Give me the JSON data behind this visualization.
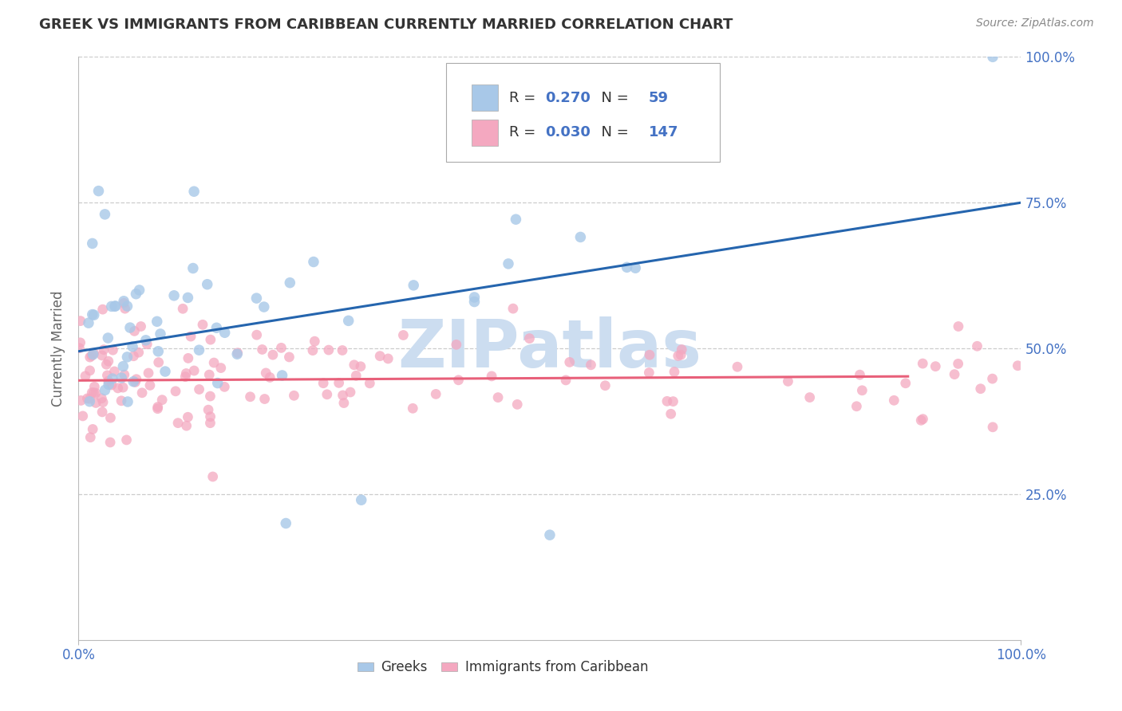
{
  "title": "GREEK VS IMMIGRANTS FROM CARIBBEAN CURRENTLY MARRIED CORRELATION CHART",
  "source": "Source: ZipAtlas.com",
  "ylabel": "Currently Married",
  "xlim": [
    0,
    1
  ],
  "ylim": [
    0,
    1
  ],
  "ytick_positions": [
    0.25,
    0.5,
    0.75,
    1.0
  ],
  "yticklabels": [
    "25.0%",
    "50.0%",
    "75.0%",
    "100.0%"
  ],
  "blue_R": 0.27,
  "blue_N": 59,
  "pink_R": 0.03,
  "pink_N": 147,
  "blue_trend_x": [
    0.0,
    1.0
  ],
  "blue_trend_y": [
    0.495,
    0.75
  ],
  "pink_trend_x": [
    0.0,
    0.88
  ],
  "pink_trend_y": [
    0.445,
    0.452
  ],
  "blue_color": "#a8c8e8",
  "pink_color": "#f4a8c0",
  "blue_line_color": "#2565ae",
  "pink_line_color": "#e8607a",
  "grid_color": "#cccccc",
  "title_color": "#333333",
  "axis_label_color": "#666666",
  "tick_label_color": "#4472c4",
  "source_color": "#888888",
  "watermark_color": "#ccddf0",
  "background_color": "#ffffff",
  "legend_R_color": "#333333",
  "legend_val_color": "#4472c4"
}
